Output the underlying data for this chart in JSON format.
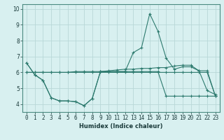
{
  "xlabel": "Humidex (Indice chaleur)",
  "x_values": [
    0,
    1,
    2,
    3,
    4,
    5,
    6,
    7,
    8,
    9,
    10,
    11,
    12,
    13,
    14,
    15,
    16,
    17,
    18,
    19,
    20,
    21,
    22,
    23
  ],
  "line1": [
    6.6,
    5.85,
    5.5,
    4.4,
    4.2,
    4.2,
    4.15,
    3.9,
    4.35,
    6.05,
    6.05,
    6.05,
    6.05,
    6.05,
    6.05,
    6.05,
    6.05,
    4.5,
    4.5,
    4.5,
    4.5,
    4.5,
    4.5,
    4.5
  ],
  "line2": [
    6.6,
    5.85,
    5.5,
    4.4,
    4.2,
    4.2,
    4.15,
    3.9,
    4.35,
    6.05,
    6.05,
    6.05,
    6.05,
    7.25,
    7.55,
    9.7,
    8.6,
    6.9,
    6.2,
    6.35,
    6.35,
    6.1,
    4.85,
    4.6
  ],
  "line3": [
    6.0,
    6.0,
    6.0,
    6.0,
    6.0,
    6.0,
    6.05,
    6.05,
    6.05,
    6.05,
    6.1,
    6.15,
    6.2,
    6.2,
    6.25,
    6.25,
    6.3,
    6.3,
    6.4,
    6.45,
    6.45,
    6.1,
    6.1,
    4.5
  ],
  "line4": [
    6.0,
    6.0,
    6.0,
    6.0,
    6.0,
    6.0,
    6.0,
    6.0,
    6.0,
    6.0,
    6.0,
    6.0,
    6.0,
    6.0,
    6.0,
    6.0,
    6.0,
    6.0,
    6.0,
    6.0,
    6.0,
    6.0,
    6.0,
    4.5
  ],
  "line_color": "#2d7a6e",
  "bg_color": "#d8f0f0",
  "grid_color": "#b8d8d8",
  "ylim": [
    3.5,
    10.3
  ],
  "xlim": [
    -0.5,
    23.5
  ],
  "yticks": [
    4,
    5,
    6,
    7,
    8,
    9,
    10
  ],
  "xticks": [
    0,
    1,
    2,
    3,
    4,
    5,
    6,
    7,
    8,
    9,
    10,
    11,
    12,
    13,
    14,
    15,
    16,
    17,
    18,
    19,
    20,
    21,
    22,
    23
  ]
}
